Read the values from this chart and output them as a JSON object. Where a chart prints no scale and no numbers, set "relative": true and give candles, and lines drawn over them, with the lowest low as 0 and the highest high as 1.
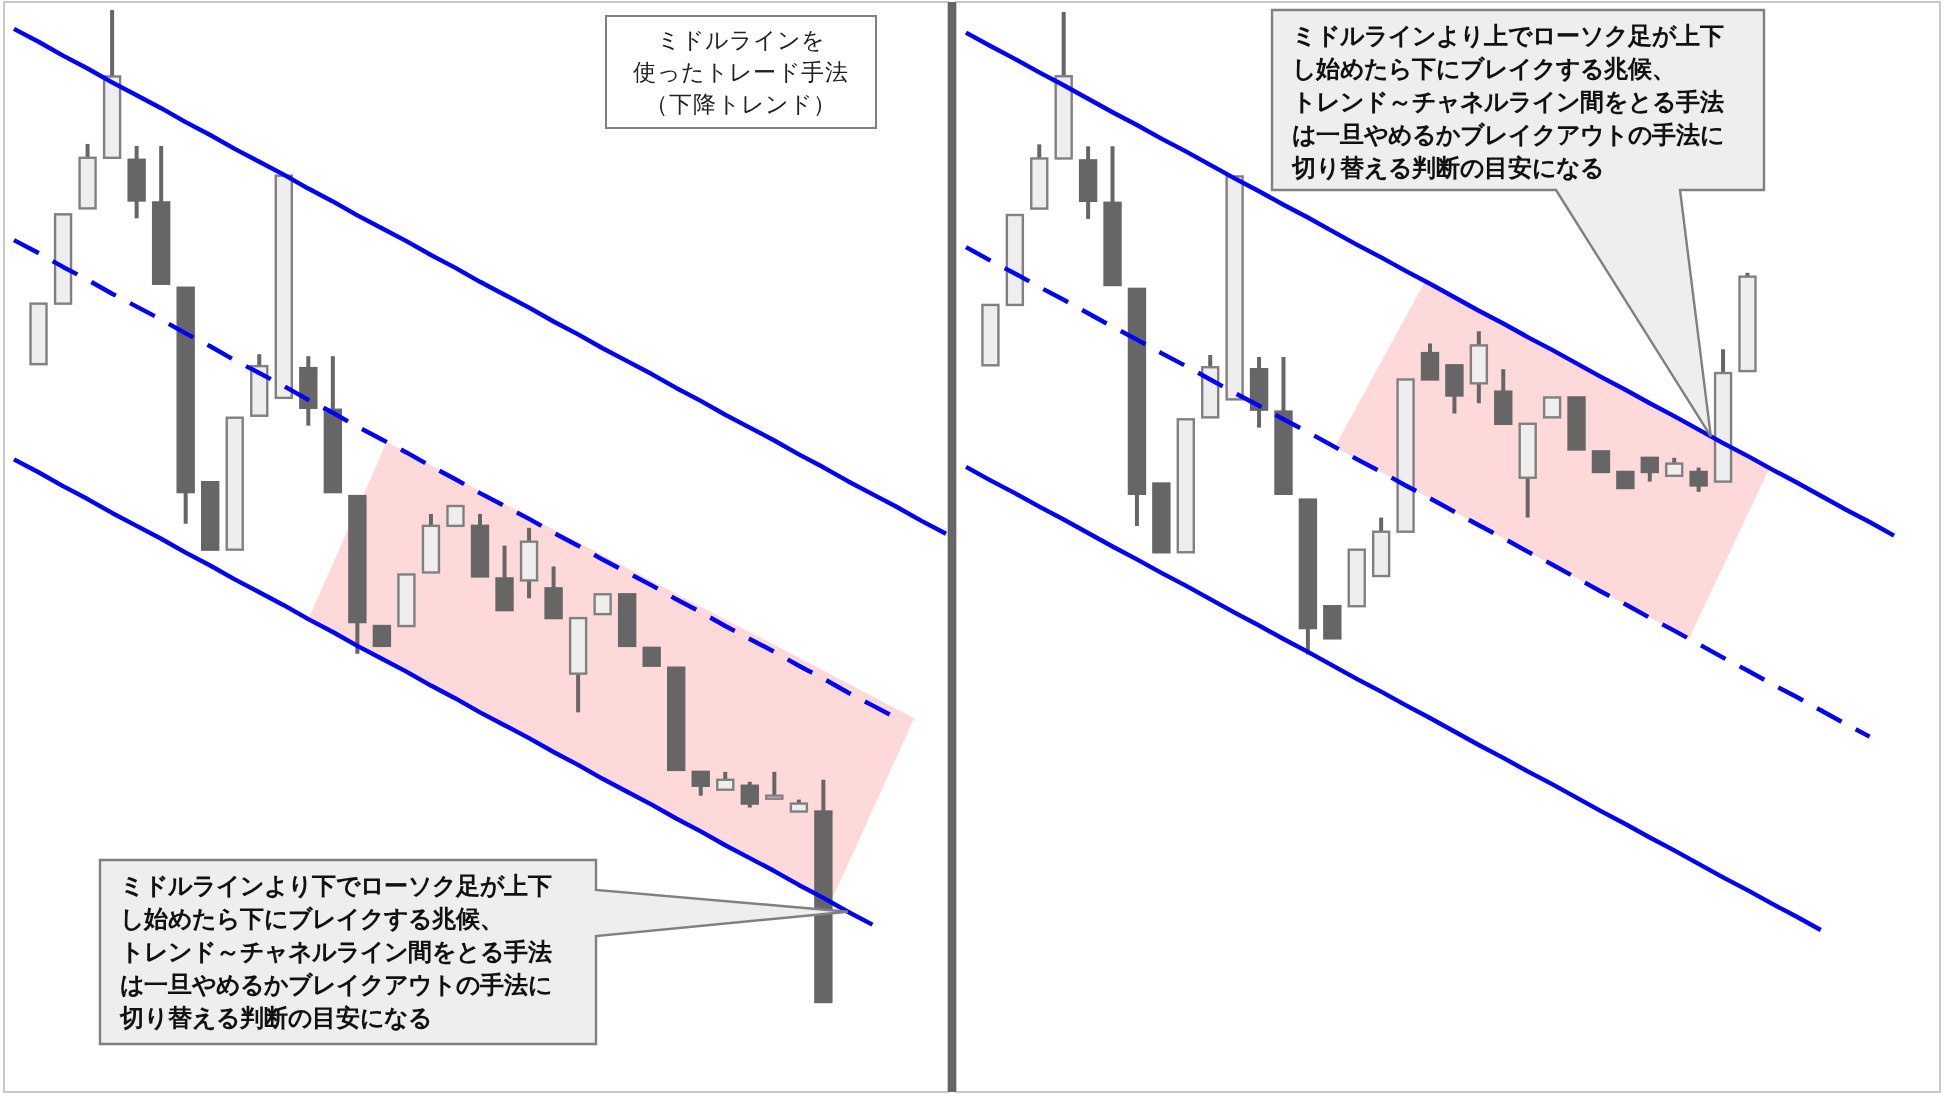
{
  "chart_data": [
    {
      "type": "candlestick",
      "title": "ミドルラインを使ったトレード手法（下降トレンド）",
      "relative": true,
      "categories": [
        null,
        null,
        null,
        null,
        null,
        null,
        null,
        null,
        null,
        null,
        null,
        null,
        null,
        null,
        null,
        null,
        null,
        null,
        null,
        null,
        null,
        null,
        null,
        null,
        null,
        null,
        null,
        null,
        null,
        null,
        null,
        null,
        null,
        null,
        null,
        null,
        null,
        null,
        null
      ],
      "ohlc": [
        null,
        [
          0.643,
          0.704,
          0.643,
          0.704
        ],
        [
          0.704,
          0.794,
          0.704,
          0.794
        ],
        [
          0.8,
          0.865,
          0.8,
          0.851
        ],
        [
          0.851,
          1.0,
          0.851,
          0.933
        ],
        [
          0.849,
          0.863,
          0.79,
          0.808
        ],
        [
          0.806,
          0.863,
          0.724,
          0.724
        ],
        [
          0.72,
          0.72,
          0.482,
          0.514
        ],
        [
          0.524,
          0.524,
          0.456,
          0.456
        ],
        [
          0.456,
          0.589,
          0.456,
          0.589
        ],
        [
          0.591,
          0.653,
          0.591,
          0.641
        ],
        [
          0.609,
          0.833,
          0.609,
          0.833
        ],
        [
          0.639,
          0.651,
          0.581,
          0.599
        ],
        [
          0.597,
          0.651,
          0.514,
          0.514
        ],
        [
          0.51,
          0.51,
          0.351,
          0.383
        ],
        [
          0.379,
          0.379,
          0.359,
          0.359
        ],
        [
          0.379,
          0.431,
          0.379,
          0.431
        ],
        [
          0.433,
          0.492,
          0.433,
          0.48
        ],
        [
          0.48,
          0.5,
          0.48,
          0.5
        ],
        [
          0.48,
          0.492,
          0.429,
          0.429
        ],
        [
          0.427,
          0.46,
          0.395,
          0.395
        ],
        [
          0.425,
          0.478,
          0.407,
          0.464
        ],
        [
          0.417,
          0.439,
          0.387,
          0.387
        ],
        [
          0.331,
          0.387,
          0.292,
          0.387
        ],
        [
          0.391,
          0.411,
          0.391,
          0.411
        ],
        [
          0.411,
          0.411,
          0.359,
          0.359
        ],
        [
          0.357,
          0.357,
          0.339,
          0.339
        ],
        [
          0.337,
          0.337,
          0.234,
          0.234
        ],
        [
          0.232,
          0.232,
          0.208,
          0.218
        ],
        [
          0.214,
          0.232,
          0.214,
          0.224
        ],
        [
          0.218,
          0.222,
          0.196,
          0.2
        ],
        [
          0.208,
          0.232,
          0.208,
          0.208
        ],
        [
          0.192,
          0.204,
          0.192,
          0.2
        ],
        [
          0.192,
          0.224,
          0,
          0
        ],
        null,
        null,
        null,
        null,
        null
      ],
      "series": [
        {
          "type": "line",
          "color": "#0000ff",
          "line_style": "solid",
          "values": [
            0.981,
            0.968,
            0.954,
            0.941,
            0.927,
            0.914,
            0.901,
            0.887,
            0.874,
            0.86,
            0.847,
            0.834,
            0.82,
            0.807,
            0.793,
            0.78,
            0.767,
            0.753,
            0.74,
            0.726,
            0.713,
            0.7,
            0.686,
            0.673,
            0.659,
            0.646,
            0.633,
            0.619,
            0.606,
            0.592,
            0.579,
            0.566,
            0.552,
            0.539,
            0.525,
            0.512,
            0.499,
            0.485,
            0.472
          ]
        },
        {
          "type": "line",
          "color": "#0000ff",
          "line_style": "dashed",
          "values": [
            0.768,
            0.755,
            0.741,
            0.728,
            0.714,
            0.701,
            0.688,
            0.674,
            0.661,
            0.647,
            0.634,
            0.621,
            0.607,
            0.594,
            0.58,
            0.567,
            0.554,
            0.54,
            0.527,
            0.513,
            0.5,
            0.487,
            0.473,
            0.46,
            0.446,
            0.433,
            0.42,
            0.406,
            0.393,
            0.379,
            0.366,
            0.353,
            0.339,
            0.326,
            0.312,
            0.299,
            0.286,
            null,
            null
          ]
        },
        {
          "type": "line",
          "color": "#0000ff",
          "line_style": "solid",
          "values": [
            0.547,
            0.534,
            0.52,
            0.507,
            0.493,
            0.48,
            0.467,
            0.453,
            0.44,
            0.426,
            0.413,
            0.4,
            0.386,
            0.373,
            0.359,
            0.346,
            0.333,
            0.319,
            0.306,
            0.292,
            0.279,
            0.266,
            0.252,
            0.239,
            0.225,
            0.212,
            0.199,
            0.185,
            0.172,
            0.158,
            0.145,
            0.132,
            0.118,
            0.105,
            0.091,
            0.078,
            null,
            null,
            null
          ]
        }
      ],
      "annotations": [
        "ミドルラインより下でローソク足が上下し始めたら下にブレイクする兆候、トレンド～チャネルライン間をとる手法は一旦やめるかブレイクアウトの手法に切り替える判断の目安になる"
      ]
    },
    {
      "type": "candlestick",
      "relative": true,
      "categories": [
        null,
        null,
        null,
        null,
        null,
        null,
        null,
        null,
        null,
        null,
        null,
        null,
        null,
        null,
        null,
        null,
        null,
        null,
        null,
        null,
        null,
        null,
        null,
        null,
        null,
        null,
        null,
        null,
        null,
        null,
        null,
        null,
        null,
        null,
        null,
        null,
        null,
        null,
        null
      ],
      "ohlc": [
        null,
        [
          0.45,
          0.544,
          0.45,
          0.544
        ],
        [
          0.544,
          0.684,
          0.544,
          0.684
        ],
        [
          0.694,
          0.794,
          0.694,
          0.772
        ],
        [
          0.772,
          1.0,
          0.772,
          0.9
        ],
        [
          0.769,
          0.791,
          0.678,
          0.706
        ],
        [
          0.703,
          0.791,
          0.575,
          0.575
        ],
        [
          0.569,
          0.569,
          0.2,
          0.25
        ],
        [
          0.266,
          0.266,
          0.159,
          0.159
        ],
        [
          0.159,
          0.366,
          0.159,
          0.366
        ],
        [
          0.369,
          0.466,
          0.369,
          0.447
        ],
        [
          0.397,
          0.744,
          0.397,
          0.744
        ],
        [
          0.444,
          0.463,
          0.353,
          0.381
        ],
        [
          0.378,
          0.463,
          0.25,
          0.25
        ],
        [
          0.241,
          0.241,
          0,
          0.041
        ],
        [
          0.075,
          0.075,
          0.025,
          0.025
        ],
        [
          0.075,
          0.163,
          0.075,
          0.163
        ],
        [
          0.122,
          0.213,
          0.122,
          0.191
        ],
        [
          0.191,
          0.428,
          0.191,
          0.428
        ],
        [
          0.469,
          0.484,
          0.428,
          0.428
        ],
        [
          0.45,
          0.45,
          0.375,
          0.403
        ],
        [
          0.422,
          0.503,
          0.391,
          0.481
        ],
        [
          0.409,
          0.444,
          0.359,
          0.359
        ],
        [
          0.275,
          0.359,
          0.213,
          0.359
        ],
        [
          0.369,
          0.4,
          0.369,
          0.4
        ],
        [
          0.4,
          0.4,
          0.319,
          0.319
        ],
        [
          0.316,
          0.316,
          0.284,
          0.284
        ],
        [
          0.284,
          0.284,
          0.259,
          0.259
        ],
        [
          0.306,
          0.306,
          0.269,
          0.284
        ],
        [
          0.278,
          0.306,
          0.278,
          0.297
        ],
        [
          0.284,
          0.291,
          0.253,
          0.263
        ],
        [
          0.269,
          0.475,
          0.269,
          0.438
        ],
        [
          0.441,
          0.594,
          0.441,
          0.588
        ],
        null,
        null,
        null,
        null,
        null,
        null
      ],
      "series": [
        {
          "type": "line",
          "color": "#0000ff",
          "line_style": "solid",
          "values": [
            0.968,
            0.947,
            0.927,
            0.906,
            0.886,
            0.865,
            0.844,
            0.824,
            0.803,
            0.783,
            0.762,
            0.741,
            0.721,
            0.7,
            0.68,
            0.659,
            0.638,
            0.618,
            0.597,
            0.577,
            0.556,
            0.535,
            0.515,
            0.494,
            0.474,
            0.453,
            0.432,
            0.412,
            0.391,
            0.371,
            0.35,
            0.329,
            0.309,
            0.288,
            0.268,
            0.247,
            0.226,
            0.206,
            0.185
          ]
        },
        {
          "type": "line",
          "color": "#0000ff",
          "line_style": "dashed",
          "values": [
            0.634,
            0.613,
            0.593,
            0.572,
            0.552,
            0.531,
            0.51,
            0.49,
            0.469,
            0.449,
            0.428,
            0.407,
            0.387,
            0.366,
            0.346,
            0.325,
            0.304,
            0.284,
            0.263,
            0.243,
            0.222,
            0.201,
            0.181,
            0.16,
            0.14,
            0.119,
            0.098,
            0.078,
            0.057,
            0.037,
            0.016,
            -0.005,
            -0.025,
            -0.046,
            -0.066,
            -0.087,
            -0.108,
            -0.128,
            null
          ]
        },
        {
          "type": "line",
          "color": "#0000ff",
          "line_style": "solid",
          "values": [
            0.292,
            0.271,
            0.251,
            0.23,
            0.21,
            0.189,
            0.168,
            0.148,
            0.127,
            0.107,
            0.086,
            0.065,
            0.045,
            0.024,
            0.004,
            -0.017,
            -0.038,
            -0.058,
            -0.079,
            -0.099,
            -0.12,
            -0.141,
            -0.161,
            -0.182,
            -0.202,
            -0.223,
            -0.244,
            -0.264,
            -0.285,
            -0.305,
            -0.326,
            -0.347,
            -0.367,
            -0.388,
            -0.408,
            -0.429,
            null,
            null,
            null
          ]
        }
      ],
      "annotations": [
        "ミドルラインより上でローソク足が上下し始めたら下にブレイクする兆候、トレンド～チャネルライン間をとる手法は一旦やめるかブレイクアウトの手法に切り替える判断の目安になる"
      ]
    }
  ]
}
